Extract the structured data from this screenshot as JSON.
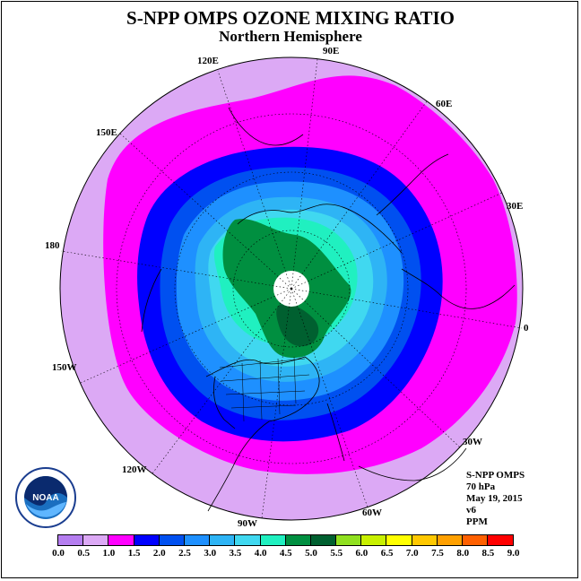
{
  "header": {
    "title": "S-NPP OMPS OZONE MIXING RATIO",
    "subtitle": "Northern Hemisphere"
  },
  "longitude_labels": [
    "90E",
    "60E",
    "30E",
    "0",
    "30W",
    "60W",
    "90W",
    "120W",
    "150W",
    "180",
    "150E",
    "120E"
  ],
  "info": {
    "instrument": "S-NPP OMPS",
    "level": "70 hPa",
    "date": "May 19, 2015",
    "version": "v6",
    "units": "PPM"
  },
  "colorbar": {
    "ticks": [
      "0.0",
      "0.5",
      "1.0",
      "1.5",
      "2.0",
      "2.5",
      "3.0",
      "3.5",
      "4.0",
      "4.5",
      "5.0",
      "5.5",
      "6.0",
      "6.5",
      "7.0",
      "7.5",
      "8.0",
      "8.5",
      "9.0"
    ],
    "colors": [
      "#b57ef0",
      "#dca9f5",
      "#ff00ff",
      "#0000ff",
      "#0050f0",
      "#1e90ff",
      "#2eb4f5",
      "#40d8f0",
      "#20f0c0",
      "#008f40",
      "#006030",
      "#90e020",
      "#c8f000",
      "#ffff00",
      "#ffc800",
      "#ffa000",
      "#ff6000",
      "#ff0000",
      "#8b5a2b"
    ]
  },
  "logo": {
    "text": "NOAA",
    "icon": "noaa-logo-icon"
  }
}
